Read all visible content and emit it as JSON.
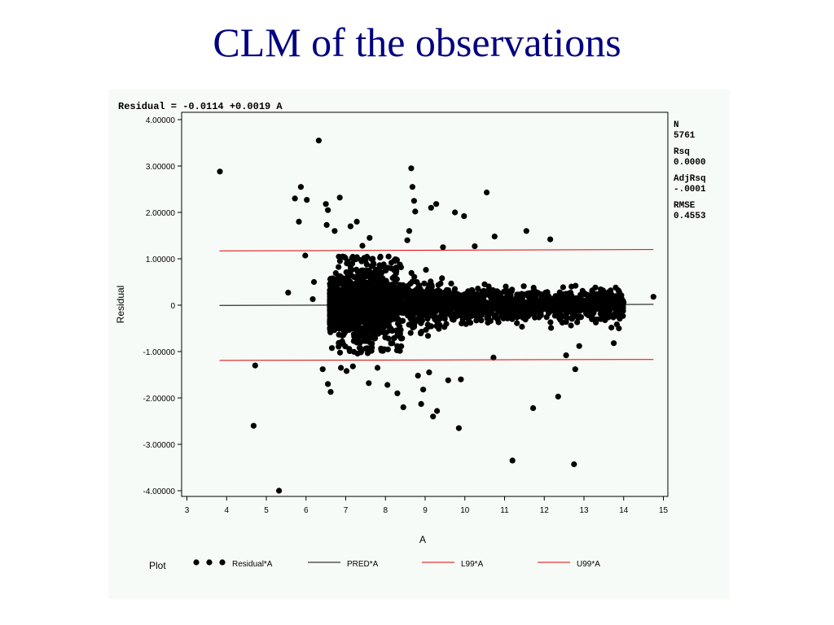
{
  "slide": {
    "title": "CLM of the observations"
  },
  "chart_data": {
    "type": "scatter",
    "equation": "Residual = -0.0114 +0.0019 A",
    "xlabel": "A",
    "ylabel": "Residual",
    "xlim": [
      3,
      15
    ],
    "ylim": [
      -4,
      4
    ],
    "x_ticks": [
      "3",
      "4",
      "5",
      "6",
      "7",
      "8",
      "9",
      "10",
      "11",
      "12",
      "13",
      "14",
      "15"
    ],
    "y_ticks": [
      "4.00000",
      "3.00000",
      "2.00000",
      "1.00000",
      "0",
      "-1.00000",
      "-2.00000",
      "-3.00000",
      "-4.00000"
    ],
    "grid": false,
    "stats": [
      {
        "label": "N",
        "value": "5761"
      },
      {
        "label": "Rsq",
        "value": "0.0000"
      },
      {
        "label": "AdjRsq",
        "value": "-.0001"
      },
      {
        "label": "RMSE",
        "value": "0.4553"
      }
    ],
    "legend_title": "Plot",
    "legend_position": "bottom",
    "series": [
      {
        "name": "Residual*A",
        "kind": "points",
        "color": "#000000"
      },
      {
        "name": "PRED*A",
        "kind": "line",
        "color": "#000000",
        "x": [
          3.82,
          14.75
        ],
        "y": [
          -0.0041,
          0.0166
        ]
      },
      {
        "name": "L99*A",
        "kind": "line",
        "color": "#e00000",
        "x": [
          3.82,
          14.75
        ],
        "y": [
          -1.19,
          -1.17
        ]
      },
      {
        "name": "U99*A",
        "kind": "line",
        "color": "#e00000",
        "x": [
          3.82,
          14.75
        ],
        "y": [
          1.17,
          1.2
        ]
      }
    ],
    "outliers": [
      [
        3.83,
        2.88
      ],
      [
        4.72,
        -1.3
      ],
      [
        4.68,
        -2.6
      ],
      [
        5.32,
        -4.0
      ],
      [
        5.55,
        0.27
      ],
      [
        5.72,
        2.3
      ],
      [
        5.82,
        1.8
      ],
      [
        5.87,
        2.55
      ],
      [
        6.02,
        2.27
      ],
      [
        5.98,
        1.07
      ],
      [
        6.2,
        0.5
      ],
      [
        6.17,
        0.13
      ],
      [
        6.32,
        3.55
      ],
      [
        6.42,
        -1.38
      ],
      [
        6.5,
        2.18
      ],
      [
        6.55,
        2.05
      ],
      [
        6.52,
        1.73
      ],
      [
        6.55,
        -1.7
      ],
      [
        6.62,
        -1.87
      ],
      [
        6.72,
        1.6
      ],
      [
        6.85,
        2.32
      ],
      [
        6.88,
        -1.35
      ],
      [
        7.02,
        -1.42
      ],
      [
        7.12,
        1.7
      ],
      [
        7.28,
        1.8
      ],
      [
        7.18,
        -1.32
      ],
      [
        7.42,
        1.28
      ],
      [
        7.6,
        1.45
      ],
      [
        7.58,
        -1.68
      ],
      [
        7.8,
        -1.35
      ],
      [
        8.05,
        -1.72
      ],
      [
        8.3,
        -1.9
      ],
      [
        8.45,
        -2.2
      ],
      [
        8.55,
        1.4
      ],
      [
        8.6,
        1.6
      ],
      [
        8.65,
        2.95
      ],
      [
        8.68,
        2.55
      ],
      [
        8.72,
        2.25
      ],
      [
        8.75,
        2.02
      ],
      [
        8.82,
        -1.52
      ],
      [
        8.9,
        -2.13
      ],
      [
        8.95,
        -1.82
      ],
      [
        9.1,
        -1.45
      ],
      [
        9.15,
        2.1
      ],
      [
        9.2,
        -2.4
      ],
      [
        9.28,
        2.18
      ],
      [
        9.3,
        -2.28
      ],
      [
        9.45,
        1.25
      ],
      [
        9.58,
        -1.62
      ],
      [
        9.75,
        2.0
      ],
      [
        9.85,
        -2.65
      ],
      [
        9.9,
        -1.6
      ],
      [
        9.98,
        1.92
      ],
      [
        10.25,
        1.27
      ],
      [
        10.55,
        2.43
      ],
      [
        10.75,
        1.48
      ],
      [
        10.72,
        -1.13
      ],
      [
        11.2,
        -3.35
      ],
      [
        11.55,
        1.6
      ],
      [
        11.72,
        -2.22
      ],
      [
        12.15,
        1.42
      ],
      [
        12.35,
        -1.97
      ],
      [
        12.55,
        -1.08
      ],
      [
        12.75,
        -3.43
      ],
      [
        12.78,
        -1.38
      ],
      [
        12.88,
        -0.88
      ],
      [
        13.75,
        -0.82
      ],
      [
        13.88,
        -0.5
      ],
      [
        14.75,
        0.18
      ]
    ]
  }
}
